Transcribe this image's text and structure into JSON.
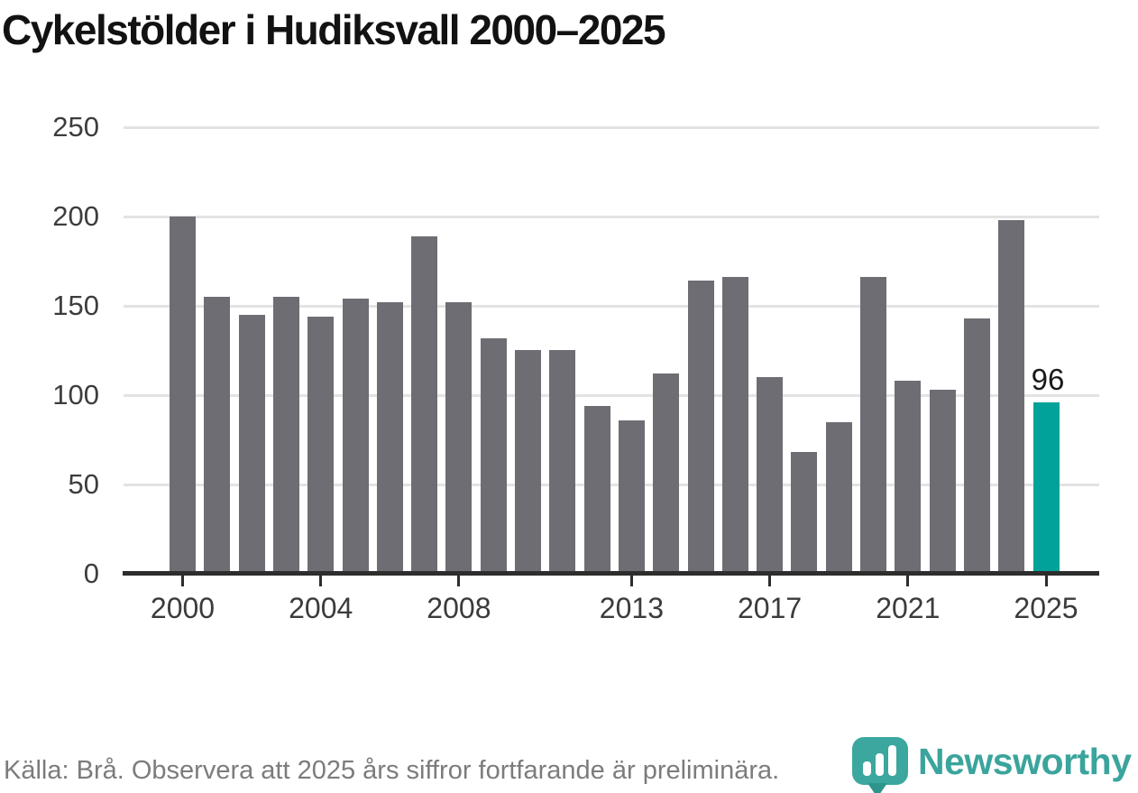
{
  "title": "Cykelstölder i Hudiksvall 2000–2025",
  "chart_data": {
    "type": "bar",
    "title": "Cykelstölder i Hudiksvall 2000–2025",
    "categories": [
      2000,
      2001,
      2002,
      2003,
      2004,
      2005,
      2006,
      2007,
      2008,
      2009,
      2010,
      2011,
      2012,
      2013,
      2014,
      2015,
      2016,
      2017,
      2018,
      2019,
      2020,
      2021,
      2022,
      2023,
      2024,
      2025
    ],
    "values": [
      200,
      155,
      145,
      155,
      144,
      154,
      152,
      189,
      152,
      132,
      125,
      125,
      94,
      86,
      112,
      164,
      166,
      110,
      68,
      85,
      166,
      108,
      103,
      143,
      198,
      96
    ],
    "xlabel": "",
    "ylabel": "",
    "ylim": [
      0,
      250
    ],
    "y_ticks": [
      0,
      50,
      100,
      150,
      200,
      250
    ],
    "x_tick_labels": [
      "2000",
      "2004",
      "2008",
      "2013",
      "2017",
      "2021",
      "2025"
    ],
    "grid": "horizontal",
    "legend": "none",
    "bar_color": "#6e6d73",
    "highlight_category": 2025,
    "highlight_color": "#00a29a",
    "annotation": {
      "category": 2025,
      "label": "96"
    }
  },
  "footer": {
    "source_note": "Källa: Brå. Observera att 2025 års siffror fortfarande är preliminära."
  },
  "branding": {
    "logo_text": "Newsworthy",
    "logo_color": "#3ba49c",
    "logo_icon": "newsworthy-pin-barchart-icon"
  }
}
